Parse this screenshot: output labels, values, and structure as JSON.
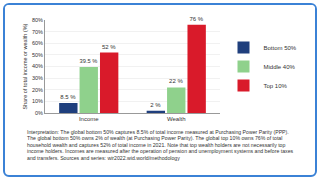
{
  "chart_data": {
    "type": "bar",
    "categories": [
      "Income",
      "Wealth"
    ],
    "series": [
      {
        "name": "Bottom 50%",
        "color": "#1f3f7d",
        "values": [
          8.5,
          2
        ],
        "value_labels": [
          "8.5 %",
          "2 %"
        ]
      },
      {
        "name": "Middle 40%",
        "color": "#8fd18c",
        "values": [
          39.5,
          22
        ],
        "value_labels": [
          "39.5 %",
          "22 %"
        ]
      },
      {
        "name": "Top 10%",
        "color": "#d91a2a",
        "values": [
          52,
          76
        ],
        "value_labels": [
          "52 %",
          "76 %"
        ]
      }
    ],
    "y_label": "Share of total income or wealth (%)",
    "ylim": [
      0,
      80
    ],
    "yticks": [
      {
        "value": 0,
        "label": "0%"
      },
      {
        "value": 10,
        "label": "10%"
      },
      {
        "value": 20,
        "label": "20%"
      },
      {
        "value": 30,
        "label": "30%"
      },
      {
        "value": 40,
        "label": "40%"
      },
      {
        "value": 50,
        "label": "50%"
      },
      {
        "value": 60,
        "label": "60%"
      },
      {
        "value": 70,
        "label": "70%"
      },
      {
        "value": 80,
        "label": "80%"
      }
    ],
    "grid": true,
    "legend": "right",
    "data_labels": true,
    "annotations": [
      "Interpretation: The global bottom 50% captures 8.5% of total income measured at Purchasing Power Parity (PPP). The global bottom 50% owns 2% of wealth (at Purchasing Power Parity). The global top 10% owns 76% of total household wealth and captures 52% of total income in 2021. Note that top wealth holders are not necessarily top income holders. Incomes are measured after the operation of pension and unemployment systems and before taxes and transfers. Sources and series: wir2022.wid.world/methodology"
    ]
  }
}
